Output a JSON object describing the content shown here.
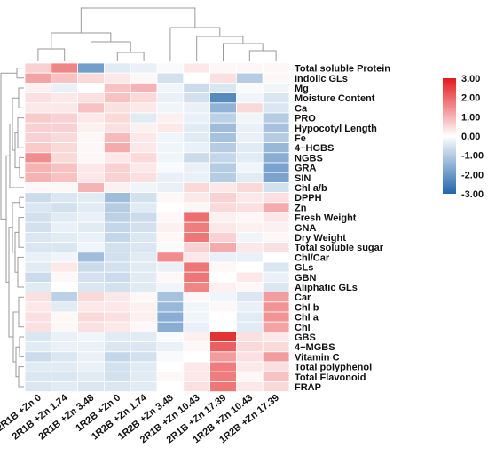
{
  "chart_data": {
    "type": "heatmap",
    "columns": [
      "2R1B +Zn 0",
      "2R1B +Zn 1.74",
      "2R1B +Zn 3.48",
      "1R2B +Zn 0",
      "1R2B +Zn 1.74",
      "1R2B +Zn 3.48",
      "2R1B +Zn 10.43",
      "2R1B +Zn 17.39",
      "1R2B +Zn 10.43",
      "1R2B +Zn 17.39"
    ],
    "rows": [
      "Total soluble Protein",
      "Indolic GLs",
      "Mg",
      "Moisture Content",
      "Ca",
      "PRO",
      "Hypocotyl Length",
      "Fe",
      "4−HGBS",
      "NGBS",
      "GRA",
      "SIN",
      "Chl a/b",
      "DPPH",
      "Zn",
      "Fresh Weight",
      "GNA",
      "Dry Weight",
      "Total soluble sugar",
      "Chl/Car",
      "GLs",
      "GBN",
      "Aliphatic GLs",
      "Car",
      "Chl b",
      "Chl a",
      "Chl",
      "GBS",
      "4−MGBS",
      "Vitamin C",
      "Total polyphenol",
      "Total Flavonoid",
      "FRAP"
    ],
    "values": [
      [
        0.6,
        1.6,
        -1.9,
        -0.4,
        -0.3,
        -0.1,
        0.3,
        0.1,
        0.1,
        0.1
      ],
      [
        1.2,
        0.8,
        0.5,
        0.3,
        0.1,
        -0.6,
        0.0,
        0.4,
        -1.0,
        0.1
      ],
      [
        0.2,
        -0.3,
        0.0,
        0.8,
        1.0,
        -0.2,
        -0.7,
        -0.5,
        -0.1,
        -0.2
      ],
      [
        0.4,
        0.3,
        0.4,
        0.8,
        0.5,
        -0.3,
        -0.6,
        -2.3,
        -0.2,
        -0.5
      ],
      [
        0.3,
        0.3,
        0.8,
        0.4,
        0.3,
        -0.2,
        -0.3,
        -1.5,
        0.5,
        -0.5
      ],
      [
        0.7,
        0.6,
        0.3,
        0.5,
        -0.4,
        0.2,
        -0.3,
        -0.9,
        -0.2,
        -1.0
      ],
      [
        0.6,
        0.6,
        0.2,
        0.4,
        0.2,
        0.3,
        -0.4,
        -1.3,
        -0.3,
        -1.2
      ],
      [
        0.6,
        0.5,
        0.1,
        0.9,
        0.3,
        -0.2,
        -0.4,
        -1.2,
        -0.3,
        -1.0
      ],
      [
        0.7,
        0.5,
        0.1,
        1.1,
        0.3,
        -0.2,
        -0.3,
        -1.0,
        -0.4,
        -1.4
      ],
      [
        1.5,
        0.5,
        0.1,
        0.3,
        0.5,
        -0.2,
        -0.7,
        -0.8,
        -0.4,
        -1.6
      ],
      [
        1.0,
        0.8,
        0.3,
        0.6,
        0.3,
        -0.1,
        -0.3,
        -1.0,
        -0.2,
        -1.8
      ],
      [
        1.0,
        0.8,
        0.3,
        0.6,
        0.4,
        -0.3,
        -0.3,
        -1.0,
        -0.4,
        -1.8
      ],
      [
        0.1,
        0.1,
        1.0,
        0.2,
        -0.2,
        -0.3,
        0.5,
        0.3,
        0.5,
        -0.6
      ],
      [
        -0.7,
        -0.5,
        -0.4,
        -1.3,
        -0.6,
        0.1,
        0.3,
        0.6,
        0.3,
        0.4
      ],
      [
        -0.5,
        -0.6,
        -0.4,
        -1.0,
        -0.4,
        0.0,
        0.1,
        0.5,
        0.4,
        1.1
      ],
      [
        -0.6,
        -0.4,
        -0.3,
        -0.9,
        -0.7,
        0.1,
        1.9,
        0.2,
        0.1,
        0.3
      ],
      [
        -0.6,
        -0.3,
        -0.4,
        -0.8,
        -0.6,
        0.2,
        1.7,
        0.3,
        0.2,
        0.2
      ],
      [
        -0.5,
        -0.4,
        -0.3,
        -0.8,
        -0.5,
        0.1,
        1.8,
        0.6,
        -0.2,
        0.1
      ],
      [
        -0.5,
        -0.5,
        -0.2,
        -0.6,
        -0.5,
        -0.1,
        0.6,
        1.1,
        0.3,
        0.4
      ],
      [
        -0.3,
        -0.2,
        -1.3,
        -0.6,
        -0.4,
        1.5,
        0.3,
        -0.3,
        -0.3,
        0.0
      ],
      [
        -0.4,
        0.3,
        -0.7,
        -0.6,
        -0.4,
        -0.3,
        1.8,
        0.1,
        0.0,
        -0.5
      ],
      [
        -0.7,
        0.1,
        -0.6,
        -0.7,
        -0.4,
        0.1,
        1.8,
        0.0,
        0.3,
        -0.3
      ],
      [
        -0.4,
        0.0,
        -0.5,
        -0.6,
        -0.4,
        -0.2,
        1.6,
        0.2,
        0.1,
        -0.5
      ],
      [
        0.4,
        -0.9,
        0.5,
        0.3,
        0.1,
        -1.2,
        0.1,
        -0.2,
        -0.5,
        1.3
      ],
      [
        0.3,
        -0.4,
        0.3,
        0.3,
        0.2,
        -1.4,
        -0.2,
        0.1,
        -0.3,
        1.4
      ],
      [
        0.4,
        0.1,
        0.5,
        0.4,
        0.2,
        -1.6,
        -0.2,
        0.0,
        -0.4,
        1.4
      ],
      [
        0.4,
        0.1,
        0.4,
        0.3,
        0.1,
        -1.6,
        -0.3,
        0.0,
        -0.4,
        1.2
      ],
      [
        -0.5,
        -0.3,
        -0.2,
        -0.4,
        -0.4,
        -0.1,
        0.2,
        2.7,
        0.4,
        0.3
      ],
      [
        -0.4,
        -0.3,
        -0.3,
        -0.5,
        -0.5,
        -0.3,
        0.1,
        2.1,
        0.5,
        0.5
      ],
      [
        -0.7,
        -0.5,
        -0.3,
        -0.8,
        -0.6,
        -0.1,
        0.0,
        1.3,
        0.4,
        1.3
      ],
      [
        -0.4,
        -0.4,
        -0.3,
        -0.6,
        -0.4,
        0.0,
        0.3,
        1.7,
        0.3,
        0.4
      ],
      [
        -0.5,
        -0.5,
        -0.4,
        -0.6,
        -0.4,
        0.1,
        0.3,
        1.7,
        0.1,
        0.8
      ],
      [
        -0.5,
        -0.4,
        -0.5,
        -0.5,
        -0.4,
        0.0,
        0.4,
        1.8,
        0.3,
        0.5
      ]
    ],
    "color_scale": {
      "range": [
        -3.0,
        3.0
      ],
      "ticks": [
        "3.00",
        "2.00",
        "1.00",
        "0.00",
        "-1.00",
        "-2.00",
        "-3.00"
      ],
      "low_color": "#2166ac",
      "mid_color": "#ffffff",
      "high_color": "#e31a1c"
    },
    "column_dendrogram": true,
    "row_dendrogram": true,
    "legend_position": "right"
  }
}
